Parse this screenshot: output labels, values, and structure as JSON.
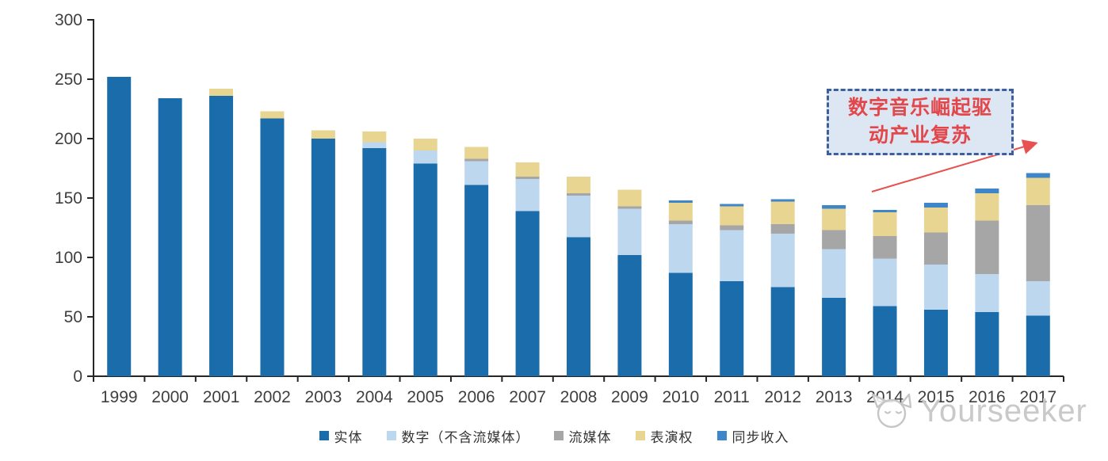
{
  "chart_data": {
    "type": "bar",
    "stacked": true,
    "title": "",
    "xlabel": "",
    "ylabel": "",
    "ylim": [
      0,
      300
    ],
    "ytick_interval": 50,
    "ytick_labels": [
      "0",
      "50",
      "100",
      "150",
      "200",
      "250",
      "300"
    ],
    "grid": false,
    "legend_position": "bottom",
    "categories": [
      "1999",
      "2000",
      "2001",
      "2002",
      "2003",
      "2004",
      "2005",
      "2006",
      "2007",
      "2008",
      "2009",
      "2010",
      "2011",
      "2012",
      "2013",
      "2014",
      "2015",
      "2016",
      "2017"
    ],
    "series": [
      {
        "name": "实体",
        "color": "#1A6CAA",
        "values": [
          252,
          234,
          236,
          217,
          200,
          192,
          179,
          161,
          139,
          117,
          102,
          87,
          80,
          75,
          66,
          59,
          56,
          54,
          51
        ]
      },
      {
        "name": "数字（不含流媒体）",
        "color": "#BDD7EE",
        "values": [
          0,
          0,
          0,
          0,
          0,
          5,
          11,
          20,
          27,
          35,
          39,
          41,
          43,
          45,
          41,
          40,
          38,
          32,
          29
        ]
      },
      {
        "name": "流媒体",
        "color": "#A6A6A6",
        "values": [
          0,
          0,
          0,
          0,
          0,
          0,
          0,
          2,
          2,
          2,
          2,
          3,
          4,
          8,
          16,
          19,
          27,
          45,
          64
        ]
      },
      {
        "name": "表演权",
        "color": "#E8D592",
        "values": [
          0,
          0,
          6,
          6,
          7,
          9,
          10,
          10,
          12,
          14,
          14,
          15,
          16,
          19,
          18,
          20,
          21,
          23,
          23
        ]
      },
      {
        "name": "同步收入",
        "color": "#3E86C7",
        "values": [
          0,
          0,
          0,
          0,
          0,
          0,
          0,
          0,
          0,
          0,
          0,
          2,
          2,
          2,
          3,
          2,
          4,
          4,
          4
        ]
      }
    ],
    "totals": [
      252,
      234,
      242,
      223,
      207,
      206,
      200,
      193,
      180,
      168,
      157,
      148,
      145,
      149,
      144,
      140,
      146,
      158,
      171
    ]
  },
  "axis": {
    "tick_color": "#3f3f3f",
    "line_color": "#262626"
  },
  "annotation": {
    "text": "数字音乐崛起驱动产业复苏",
    "text_color": "#E2474B",
    "border_color": "#3E5F9E",
    "bg_color": "#DDE7F3",
    "arrow_color": "#E8514F"
  },
  "watermark": {
    "text": "Yourseeker",
    "logo_icon": "cat-logo",
    "color": "#c7c7c7"
  }
}
